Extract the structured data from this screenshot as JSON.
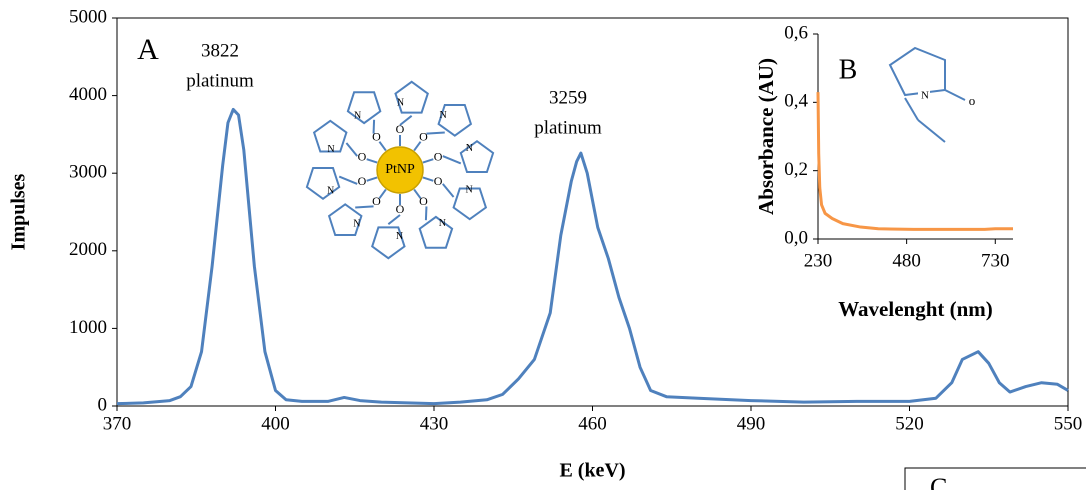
{
  "chart_data": [
    {
      "type": "line",
      "x_label": "E (keV)",
      "y_label": "Impulses",
      "panel_label": "A",
      "annotations": [
        "3822",
        "platinum",
        "3259",
        "platinum"
      ],
      "core_label": "PtNP",
      "atom_o": "O",
      "atom_n": "N",
      "xlim": [
        370,
        550
      ],
      "xticks": [
        370,
        400,
        430,
        460,
        490,
        520,
        550
      ],
      "ylim": [
        0,
        5000
      ],
      "yticks": [
        0,
        1000,
        2000,
        3000,
        4000,
        5000
      ],
      "grid": false,
      "x": [
        370,
        375,
        380,
        382,
        384,
        386,
        388,
        390,
        391,
        392,
        393,
        394,
        396,
        398,
        400,
        402,
        405,
        410,
        413,
        416,
        420,
        425,
        430,
        435,
        440,
        443,
        446,
        449,
        452,
        454,
        456,
        457,
        457.8,
        459,
        461,
        463,
        465,
        467,
        469,
        471,
        474,
        480,
        490,
        500,
        510,
        520,
        525,
        528,
        530,
        533,
        535,
        537,
        539,
        542,
        545,
        548,
        550
      ],
      "series": [
        {
          "color": "#4f81bd",
          "values": [
            30,
            40,
            70,
            120,
            250,
            700,
            1800,
            3100,
            3650,
            3822,
            3750,
            3300,
            1800,
            700,
            200,
            80,
            60,
            60,
            110,
            70,
            50,
            40,
            30,
            50,
            80,
            150,
            350,
            600,
            1200,
            2200,
            2900,
            3150,
            3259,
            3000,
            2300,
            1900,
            1400,
            1000,
            500,
            200,
            120,
            100,
            70,
            50,
            60,
            60,
            100,
            300,
            600,
            700,
            550,
            300,
            180,
            250,
            300,
            280,
            200
          ]
        }
      ]
    },
    {
      "type": "line",
      "x_label": "Wavelenght (nm)",
      "y_label": "Absorbance (AU)",
      "panel_label": "B",
      "atom_o": "o",
      "atom_n": "N",
      "xlim": [
        230,
        780
      ],
      "xticks": [
        230,
        480,
        730
      ],
      "ylim": [
        0,
        0.6
      ],
      "yticks": [
        {
          "value": 0,
          "label": "0,0"
        },
        {
          "value": 0.2,
          "label": "0,2"
        },
        {
          "value": 0.4,
          "label": "0,4"
        },
        {
          "value": 0.6,
          "label": "0,6"
        }
      ],
      "grid": false,
      "x": [
        230,
        232,
        235,
        240,
        250,
        270,
        300,
        350,
        400,
        500,
        600,
        700,
        730,
        780
      ],
      "series": [
        {
          "color": "#f79646",
          "values": [
            0.43,
            0.25,
            0.15,
            0.1,
            0.075,
            0.06,
            0.045,
            0.035,
            0.03,
            0.028,
            0.028,
            0.028,
            0.03,
            0.03
          ]
        }
      ]
    }
  ],
  "panel_c": "C"
}
